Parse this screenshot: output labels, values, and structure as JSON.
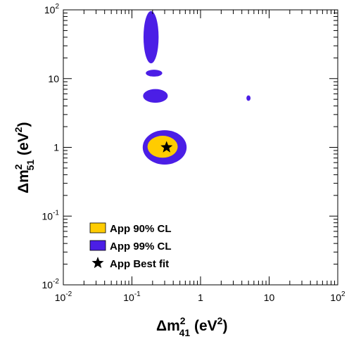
{
  "chart_data": {
    "type": "scatter",
    "x_scale": "log",
    "y_scale": "log",
    "xlim": [
      0.01,
      100
    ],
    "ylim": [
      0.01,
      100
    ],
    "x_ticks": [
      {
        "base": "10",
        "exp": "-2"
      },
      {
        "base": "10",
        "exp": "-1"
      },
      {
        "base": "1",
        "exp": ""
      },
      {
        "base": "10",
        "exp": ""
      },
      {
        "base": "10",
        "exp": "2"
      }
    ],
    "y_ticks": [
      {
        "base": "10",
        "exp": "-2"
      },
      {
        "base": "10",
        "exp": "-1"
      },
      {
        "base": "1",
        "exp": ""
      },
      {
        "base": "10",
        "exp": ""
      },
      {
        "base": "10",
        "exp": "2"
      }
    ],
    "xlabel": {
      "prefix": "Δm",
      "sup": "2",
      "sub": "41",
      "unit": " (eV",
      "unit_sup": "2",
      "close": ")"
    },
    "ylabel": {
      "prefix": "Δm",
      "sup": "2",
      "sub": "51",
      "unit": " (eV",
      "unit_sup": "2",
      "close": ")"
    },
    "grid": false,
    "legend_position": "bottom-left",
    "legend": [
      {
        "label": "App 90% CL",
        "color": "#ffcc00",
        "marker": "box"
      },
      {
        "label": "App 99% CL",
        "color": "#4b1ee6",
        "marker": "box"
      },
      {
        "label": "App Best fit",
        "color": "#000000",
        "marker": "star"
      }
    ],
    "series": [
      {
        "name": "App 99% CL",
        "color": "#4b1ee6",
        "regions": [
          {
            "cx": 0.19,
            "cy": 40.0,
            "rx_dex": 0.11,
            "ry_dex": 0.38
          },
          {
            "cx": 0.21,
            "cy": 12.0,
            "rx_dex": 0.12,
            "ry_dex": 0.05
          },
          {
            "cx": 0.22,
            "cy": 5.6,
            "rx_dex": 0.18,
            "ry_dex": 0.1
          },
          {
            "cx": 0.3,
            "cy": 1.0,
            "rx_dex": 0.32,
            "ry_dex": 0.25
          },
          {
            "cx": 5.0,
            "cy": 5.2,
            "rx_dex": 0.03,
            "ry_dex": 0.04
          }
        ]
      },
      {
        "name": "App 90% CL",
        "color": "#ffcc00",
        "regions": [
          {
            "cx": 0.28,
            "cy": 1.02,
            "rx_dex": 0.22,
            "ry_dex": 0.16
          }
        ]
      }
    ],
    "best_fit": {
      "x": 0.32,
      "y": 1.0
    }
  }
}
